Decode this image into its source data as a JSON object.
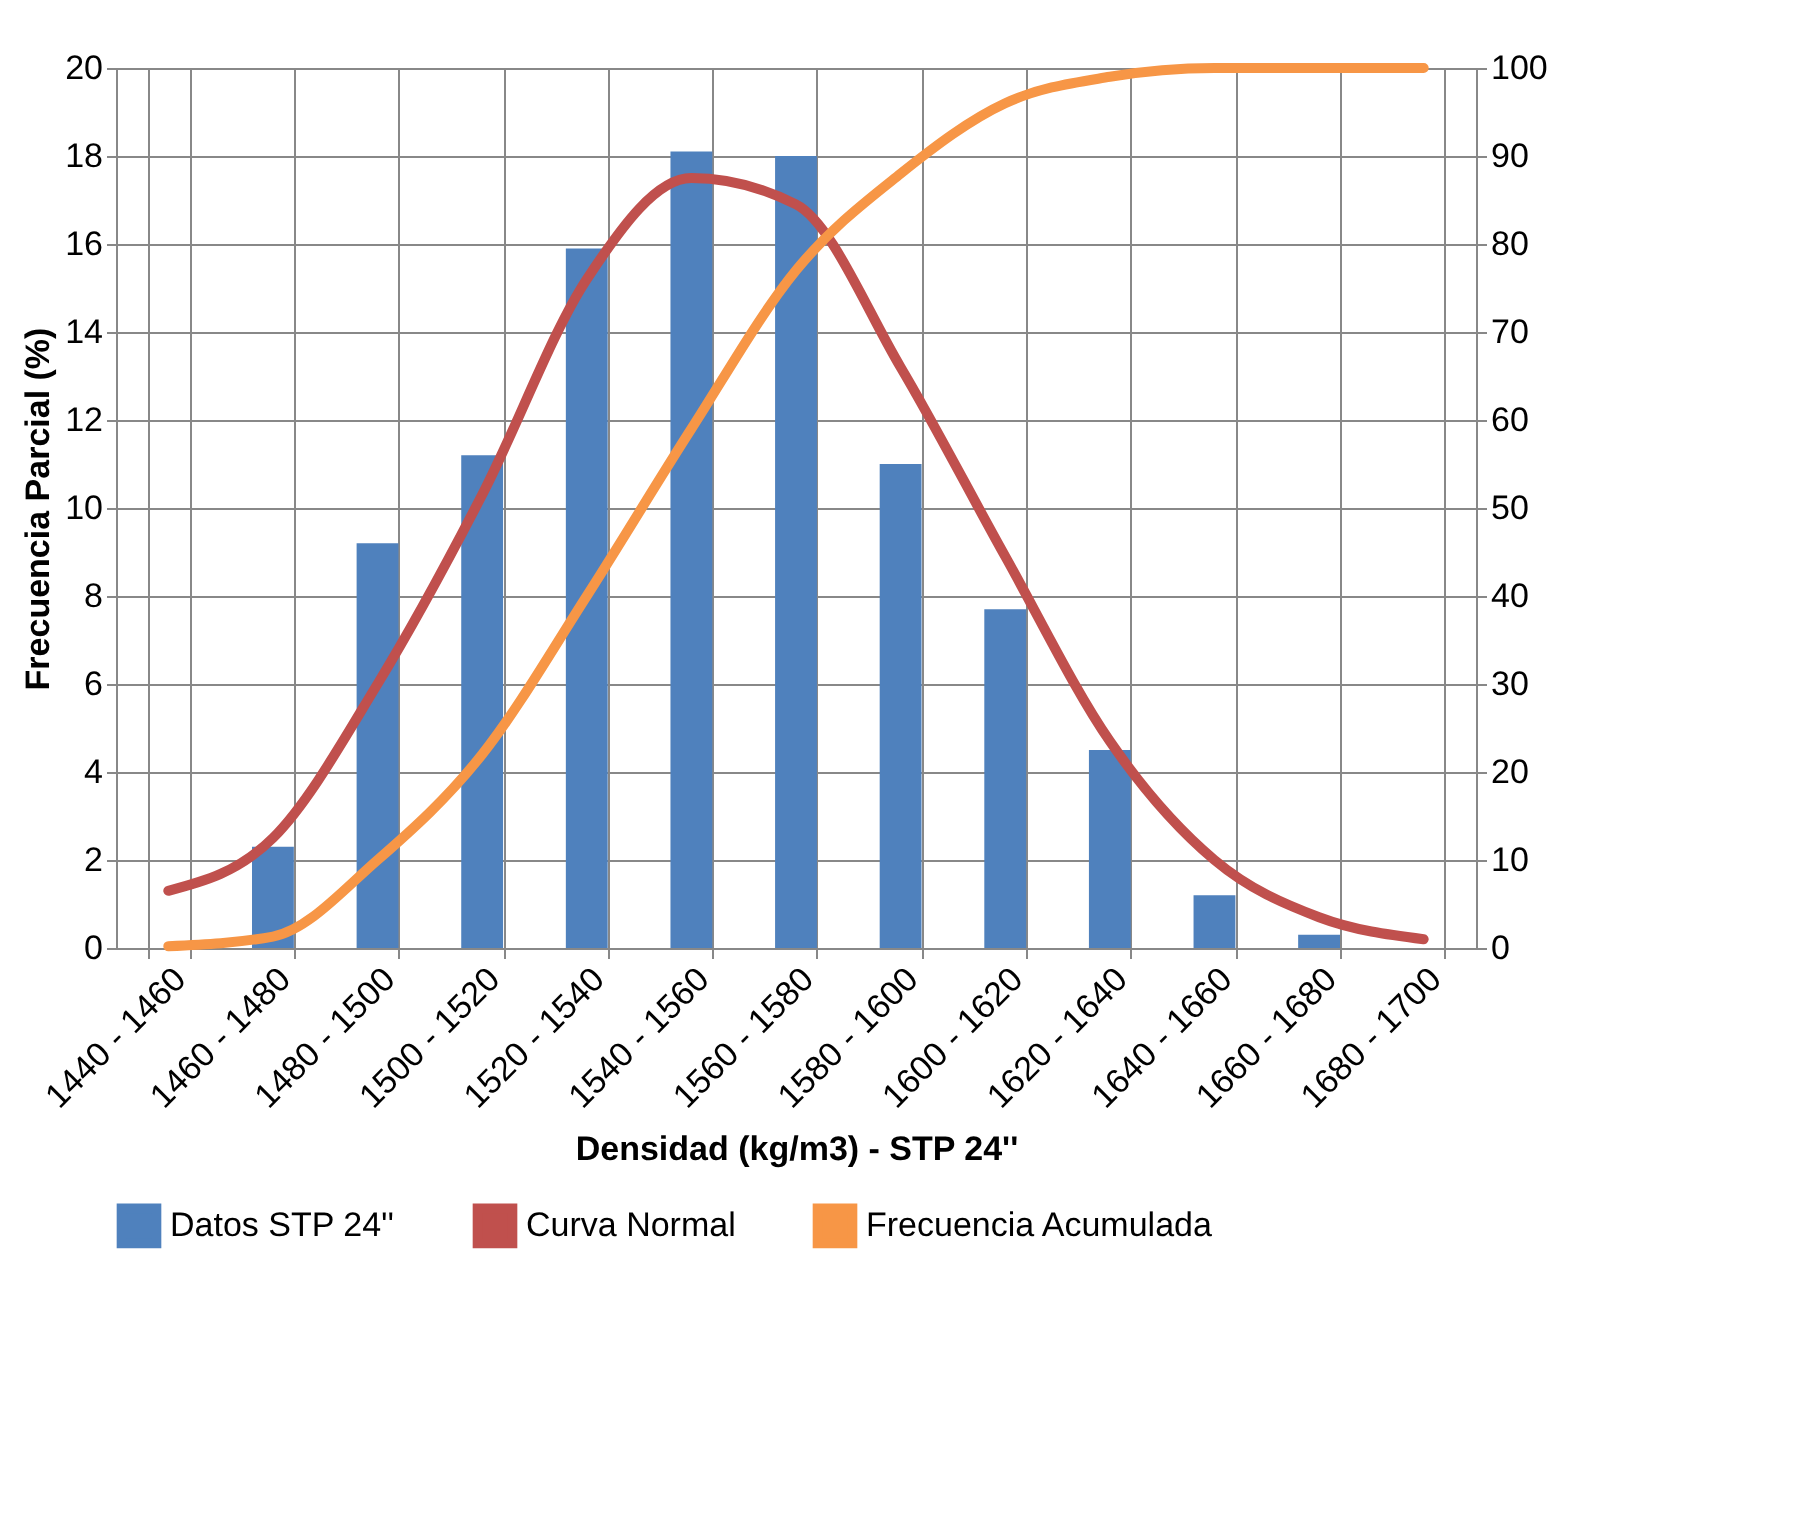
{
  "chart_data": {
    "type": "bar",
    "xlabel": "Densidad (kg/m3) - STP 24''",
    "ylabel": "Frecuencia Parcial (%)",
    "categories": [
      "1440 - 1460",
      "1460 - 1480",
      "1480 - 1500",
      "1500 - 1520",
      "1520 - 1540",
      "1540 - 1560",
      "1560 - 1580",
      "1580 - 1600",
      "1600 - 1620",
      "1620 - 1640",
      "1640 - 1660",
      "1660 - 1680",
      "1680 - 1700"
    ],
    "series": [
      {
        "name": "Datos STP 24''",
        "color": "#4f81bd",
        "values": [
          0,
          2.3,
          9.2,
          11.2,
          15.9,
          18.1,
          18.0,
          11.0,
          7.7,
          4.5,
          1.2,
          0.3,
          0
        ]
      },
      {
        "name": "Curva Normal",
        "type": "line",
        "color": "#c0504d",
        "values": [
          1.3,
          2.5,
          6.0,
          10.3,
          15.2,
          17.5,
          16.9,
          13.2,
          8.9,
          4.7,
          2.0,
          0.7,
          0.2
        ]
      },
      {
        "name": "Frecuencia Acumulada",
        "type": "line",
        "axis": "y2",
        "color": "#f79646",
        "values": [
          0.2,
          1.3,
          10,
          22,
          40,
          59,
          77,
          88,
          96,
          99,
          100,
          100,
          100
        ]
      }
    ],
    "ylim": [
      0,
      20
    ],
    "yticks": [
      0,
      2,
      4,
      6,
      8,
      10,
      12,
      14,
      16,
      18,
      20
    ],
    "y2lim": [
      0,
      100
    ],
    "y2ticks": [
      0,
      10,
      20,
      30,
      40,
      50,
      60,
      70,
      80,
      90,
      100
    ],
    "grid": true,
    "legend": "bottom"
  }
}
